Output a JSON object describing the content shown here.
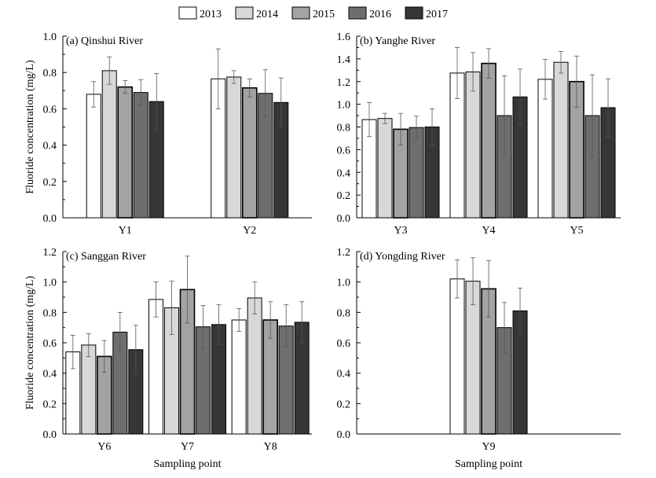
{
  "legend": {
    "years": [
      "2013",
      "2014",
      "2015",
      "2016",
      "2017"
    ],
    "colors": [
      "#ffffff",
      "#d8d8d8",
      "#a3a3a3",
      "#6e6e6e",
      "#363636"
    ]
  },
  "shared": {
    "ylabel": "Fluoride concentration (mg/L)",
    "xlabel": "Sampling point"
  },
  "chart_data": [
    {
      "type": "bar",
      "title": "(a) Qinshui River",
      "categories": [
        "Y1",
        "Y2"
      ],
      "ylim": [
        0,
        1.0
      ],
      "yticks": [
        "0.0",
        "0.2",
        "0.4",
        "0.6",
        "0.8",
        "1.0"
      ],
      "ylabel": "Fluoride concentration (mg/L)",
      "xlabel": "",
      "series": [
        {
          "name": "2013",
          "values": [
            0.68,
            0.765
          ],
          "errors": [
            0.07,
            0.165
          ]
        },
        {
          "name": "2014",
          "values": [
            0.81,
            0.775
          ],
          "errors": [
            0.075,
            0.035
          ]
        },
        {
          "name": "2015",
          "values": [
            0.72,
            0.715
          ],
          "errors": [
            0.035,
            0.05
          ]
        },
        {
          "name": "2016",
          "values": [
            0.69,
            0.685
          ],
          "errors": [
            0.07,
            0.13
          ]
        },
        {
          "name": "2017",
          "values": [
            0.64,
            0.635
          ],
          "errors": [
            0.155,
            0.135
          ]
        }
      ]
    },
    {
      "type": "bar",
      "title": "(b) Yanghe River",
      "categories": [
        "Y3",
        "Y4",
        "Y5"
      ],
      "ylim": [
        0,
        1.6
      ],
      "yticks": [
        "0.0",
        "0.2",
        "0.4",
        "0.6",
        "0.8",
        "1.0",
        "1.2",
        "1.4",
        "1.6"
      ],
      "ylabel": "",
      "xlabel": "",
      "series": [
        {
          "name": "2013",
          "values": [
            0.865,
            1.275,
            1.22
          ],
          "errors": [
            0.15,
            0.225,
            0.175
          ]
        },
        {
          "name": "2014",
          "values": [
            0.875,
            1.285,
            1.37
          ],
          "errors": [
            0.045,
            0.17,
            0.095
          ]
        },
        {
          "name": "2015",
          "values": [
            0.78,
            1.36,
            1.2
          ],
          "errors": [
            0.14,
            0.13,
            0.225
          ]
        },
        {
          "name": "2016",
          "values": [
            0.795,
            0.9,
            0.9
          ],
          "errors": [
            0.1,
            0.35,
            0.36
          ]
        },
        {
          "name": "2017",
          "values": [
            0.8,
            1.065,
            0.97
          ],
          "errors": [
            0.16,
            0.245,
            0.255
          ]
        }
      ]
    },
    {
      "type": "bar",
      "title": "(c) Sanggan River",
      "categories": [
        "Y6",
        "Y7",
        "Y8"
      ],
      "ylim": [
        0,
        1.2
      ],
      "yticks": [
        "0.0",
        "0.2",
        "0.4",
        "0.6",
        "0.8",
        "1.0",
        "1.2"
      ],
      "ylabel": "Fluoride concentration (mg/L)",
      "xlabel": "Sampling point",
      "series": [
        {
          "name": "2013",
          "values": [
            0.54,
            0.885,
            0.75
          ],
          "errors": [
            0.11,
            0.115,
            0.075
          ]
        },
        {
          "name": "2014",
          "values": [
            0.585,
            0.83,
            0.895
          ],
          "errors": [
            0.075,
            0.175,
            0.105
          ]
        },
        {
          "name": "2015",
          "values": [
            0.51,
            0.95,
            0.75
          ],
          "errors": [
            0.105,
            0.22,
            0.12
          ]
        },
        {
          "name": "2016",
          "values": [
            0.67,
            0.705,
            0.71
          ],
          "errors": [
            0.13,
            0.14,
            0.14
          ]
        },
        {
          "name": "2017",
          "values": [
            0.555,
            0.72,
            0.735
          ],
          "errors": [
            0.16,
            0.13,
            0.135
          ]
        }
      ]
    },
    {
      "type": "bar",
      "title": "(d) Yongding River",
      "categories": [
        "Y9"
      ],
      "ylim": [
        0,
        1.2
      ],
      "yticks": [
        "0.0",
        "0.2",
        "0.4",
        "0.6",
        "0.8",
        "1.0",
        "1.2"
      ],
      "ylabel": "",
      "xlabel": "Sampling point",
      "series": [
        {
          "name": "2013",
          "values": [
            1.02
          ],
          "errors": [
            0.125
          ]
        },
        {
          "name": "2014",
          "values": [
            1.005
          ],
          "errors": [
            0.155
          ]
        },
        {
          "name": "2015",
          "values": [
            0.955
          ],
          "errors": [
            0.185
          ]
        },
        {
          "name": "2016",
          "values": [
            0.7
          ],
          "errors": [
            0.165
          ]
        },
        {
          "name": "2017",
          "values": [
            0.81
          ],
          "errors": [
            0.15
          ]
        }
      ]
    }
  ]
}
